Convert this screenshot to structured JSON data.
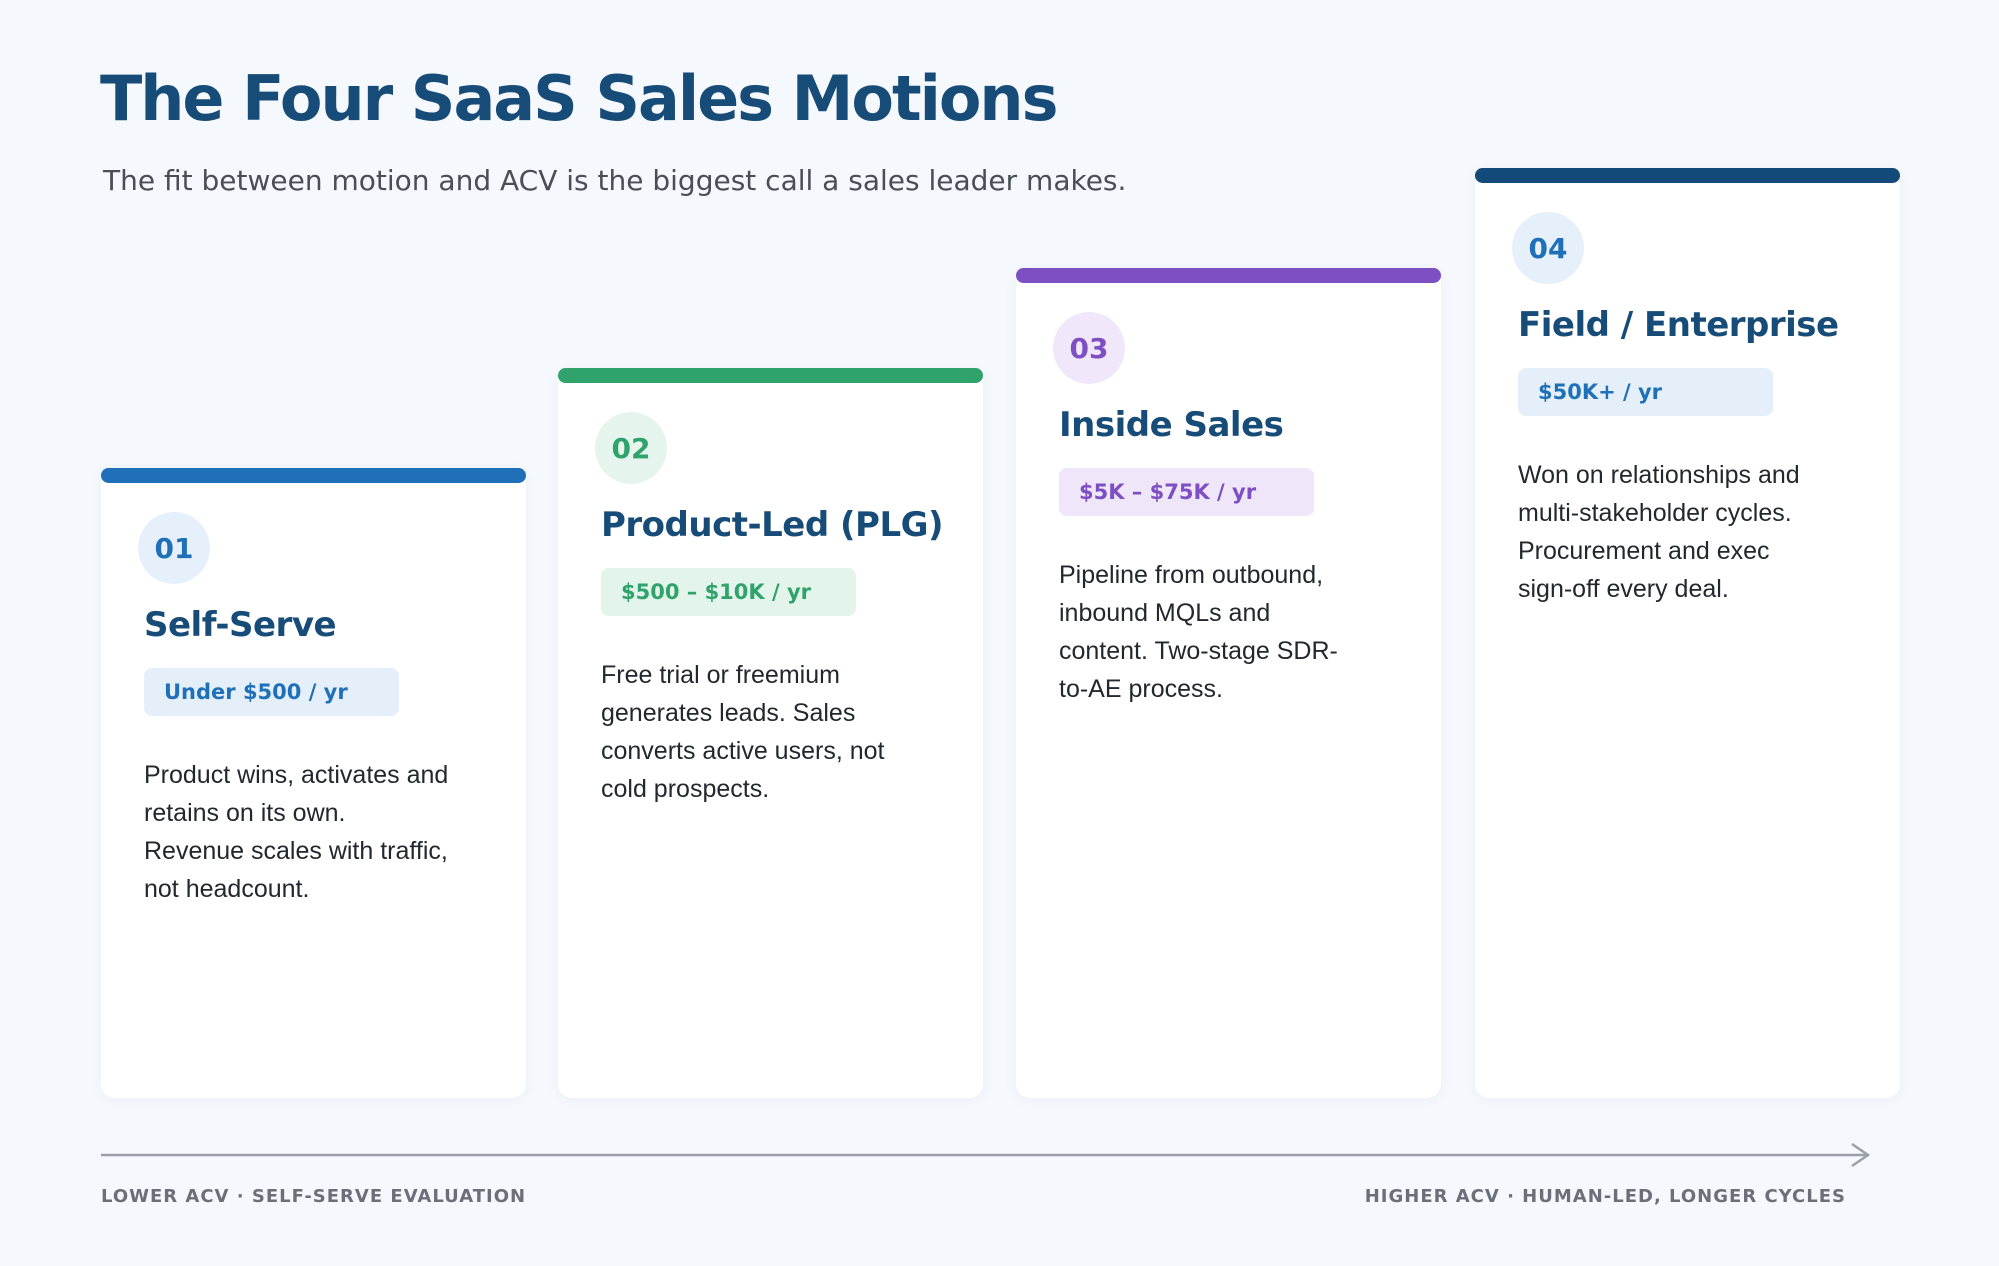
{
  "header": {
    "title": "The Four SaaS Sales Motions",
    "subtitle": "The fit between motion and ACV is the biggest call a sales leader makes."
  },
  "cards": [
    {
      "number": "01",
      "name": "Self-Serve",
      "price": "Under $500 / yr",
      "description": "Product wins, activates and retains on its own. Revenue scales with traffic, not headcount."
    },
    {
      "number": "02",
      "name": "Product-Led (PLG)",
      "price": "$500 – $10K / yr",
      "description": "Free trial or freemium generates leads. Sales converts active users, not cold prospects."
    },
    {
      "number": "03",
      "name": "Inside Sales",
      "price": "$5K – $75K / yr",
      "description": "Pipeline from outbound, inbound MQLs and content. Two-stage SDR-to-AE process."
    },
    {
      "number": "04",
      "name": "Field / Enterprise",
      "price": "$50K+ / yr",
      "description": "Won on relationships and multi-stakeholder cycles. Procurement and exec sign-off every deal."
    }
  ],
  "axis": {
    "left_label": "LOWER ACV · SELF-SERVE EVALUATION",
    "right_label": "HIGHER ACV · HUMAN-LED, LONGER CYCLES"
  }
}
